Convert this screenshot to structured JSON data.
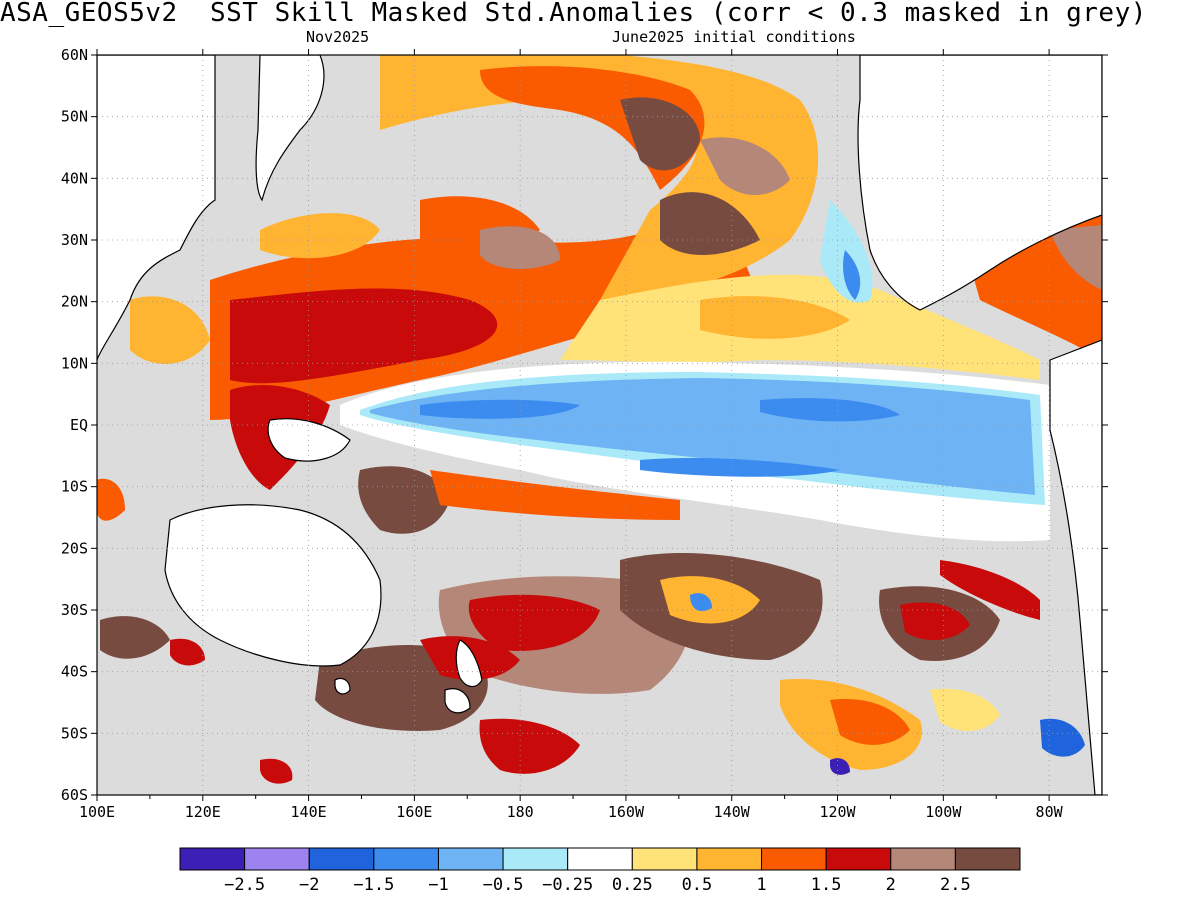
{
  "title": "ASA_GEOS5v2  SST Skill Masked Std.Anomalies (corr < 0.3 masked in grey)",
  "subtitle_left": "Nov2025",
  "subtitle_right": "June2025 initial conditions",
  "colors": {
    "land": "#ffffff",
    "masked": "#dcdcdc",
    "coast": "#000000",
    "grid": "#9a9a9a"
  },
  "chart_data": {
    "type": "heatmap",
    "projection": "equirectangular",
    "lon_range": [
      100,
      290
    ],
    "lat_range": [
      -60,
      60
    ],
    "x_ticks": [
      "100E",
      "120E",
      "140E",
      "160E",
      "180",
      "160W",
      "140W",
      "120W",
      "100W",
      "80W"
    ],
    "y_ticks": [
      "60N",
      "50N",
      "40N",
      "30N",
      "20N",
      "10N",
      "EQ",
      "10S",
      "20S",
      "30S",
      "40S",
      "50S",
      "60S"
    ],
    "colorbar": {
      "colors": [
        "#3c1fb4",
        "#9c83f0",
        "#1f64dc",
        "#3c8cf0",
        "#6eb4f5",
        "#aaeaf8",
        "#ffffff",
        "#ffe278",
        "#ffb432",
        "#fa5a00",
        "#c80a0a",
        "#b48778",
        "#784b41"
      ],
      "labels": [
        "−2.5",
        "−2",
        "−1.5",
        "−1",
        "−0.5",
        "−0.25",
        "0.25",
        "0.5",
        "1",
        "1.5",
        "2",
        "2.5"
      ]
    }
  }
}
